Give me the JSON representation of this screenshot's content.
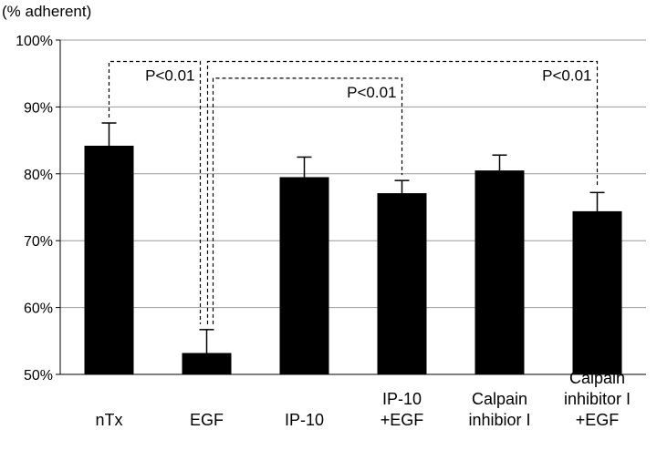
{
  "chart_data": {
    "type": "bar",
    "title": "",
    "ylabel": "(% adherent)",
    "xlabel": "",
    "ylim": [
      50,
      100
    ],
    "ytick_values": [
      50,
      60,
      70,
      80,
      90,
      100
    ],
    "ytick_labels": [
      "50%",
      "60%",
      "70%",
      "80%",
      "90%",
      "100%"
    ],
    "grid": true,
    "categories": [
      [
        "nTx"
      ],
      [
        "EGF"
      ],
      [
        "IP-10"
      ],
      [
        "IP-10",
        "+EGF"
      ],
      [
        "Calpain",
        "inhibior I"
      ],
      [
        "Calpain",
        "inhibitor I",
        "+EGF"
      ]
    ],
    "series": [
      {
        "name": "% adherent",
        "values": [
          84.2,
          53.2,
          79.5,
          77.1,
          80.5,
          74.4
        ],
        "errors": [
          3.4,
          3.5,
          3.0,
          1.9,
          2.3,
          2.8
        ],
        "color": "#000000"
      }
    ],
    "annotations": [
      {
        "text": "P<0.01",
        "from": 0,
        "to": 1,
        "level": 96.8
      },
      {
        "text": "P<0.01",
        "from": 1,
        "to": 3,
        "level": 94.3
      },
      {
        "text": "P<0.01",
        "from": 1,
        "to": 5,
        "level": 96.8
      }
    ]
  }
}
